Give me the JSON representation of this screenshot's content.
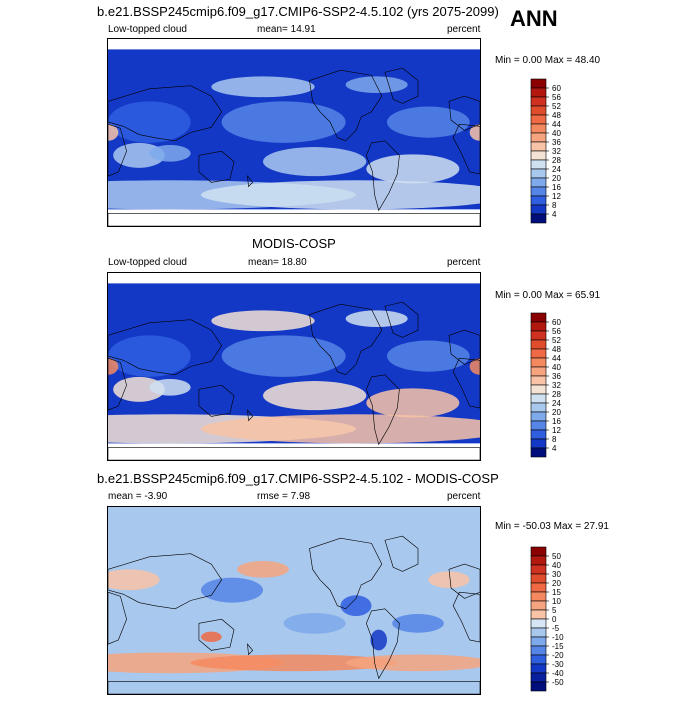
{
  "page": {
    "season": "ANN"
  },
  "panels": [
    {
      "title": "b.e21.BSSP245cmip6.f09_g17.CMIP6-SSP2-4.5.102 (yrs 2075-2099)",
      "left_label": "Low-topped cloud",
      "mid_label": "mean=  14.91",
      "right_label": "percent",
      "minmax": "Min =   0.00 Max =  48.40",
      "palette": "absolute",
      "field_bias": -0.55
    },
    {
      "title": "MODIS-COSP",
      "left_label": "Low-topped cloud",
      "mid_label": "mean=  18.80",
      "right_label": "percent",
      "minmax": "Min =   0.00 Max =  65.91",
      "palette": "absolute",
      "field_bias": 0.0
    },
    {
      "title": "b.e21.BSSP245cmip6.f09_g17.CMIP6-SSP2-4.5.102 - MODIS-COSP",
      "left_label": "mean =  -3.90",
      "mid_label": "rmse =   7.98",
      "right_label": "percent",
      "minmax": "Min = -50.03 Max =  27.91",
      "palette": "diff",
      "field_bias": 0.0
    }
  ],
  "colorbars": {
    "absolute": {
      "labels": [
        "60",
        "56",
        "52",
        "48",
        "44",
        "40",
        "36",
        "32",
        "28",
        "24",
        "20",
        "16",
        "12",
        "8",
        "4"
      ],
      "colors": [
        "#8b0000",
        "#b2180e",
        "#cf3220",
        "#e04d2c",
        "#ef6a44",
        "#f4895f",
        "#f6a47f",
        "#f8c3a6",
        "#f4e3d4",
        "#cfe0f1",
        "#a9c8ee",
        "#7ea9ea",
        "#5585e6",
        "#2f5fe0",
        "#1438c6",
        "#000e7c"
      ]
    },
    "diff": {
      "labels": [
        "50",
        "40",
        "30",
        "20",
        "15",
        "10",
        "5",
        "0",
        "-5",
        "-10",
        "-15",
        "-20",
        "-30",
        "-40",
        "-50"
      ],
      "colors": [
        "#8b0000",
        "#b2180e",
        "#cf3220",
        "#e04d2c",
        "#ef6a44",
        "#f4895f",
        "#f6a47f",
        "#f8c3a6",
        "#d7e6f5",
        "#a9c8ee",
        "#7ea9ea",
        "#5585e6",
        "#2f5fe0",
        "#1438c6",
        "#081f9e",
        "#000e7c"
      ]
    }
  },
  "chart_data": [
    {
      "type": "heatmap",
      "title": "b.e21.BSSP245cmip6.f09_g17.CMIP6-SSP2-4.5.102 (yrs 2075-2099)",
      "variable": "Low-topped cloud",
      "units": "percent",
      "mean": 14.91,
      "min": 0.0,
      "max": 48.4,
      "contour_levels": [
        4,
        8,
        12,
        16,
        20,
        24,
        28,
        32,
        36,
        40,
        44,
        48,
        52,
        56,
        60
      ]
    },
    {
      "type": "heatmap",
      "title": "MODIS-COSP",
      "variable": "Low-topped cloud",
      "units": "percent",
      "mean": 18.8,
      "min": 0.0,
      "max": 65.91,
      "contour_levels": [
        4,
        8,
        12,
        16,
        20,
        24,
        28,
        32,
        36,
        40,
        44,
        48,
        52,
        56,
        60
      ]
    },
    {
      "type": "heatmap",
      "title": "b.e21.BSSP245cmip6.f09_g17.CMIP6-SSP2-4.5.102 - MODIS-COSP",
      "units": "percent",
      "mean": -3.9,
      "rmse": 7.98,
      "min": -50.03,
      "max": 27.91,
      "contour_levels": [
        -50,
        -40,
        -30,
        -20,
        -15,
        -10,
        -5,
        0,
        5,
        10,
        15,
        20,
        30,
        40,
        50
      ]
    }
  ]
}
